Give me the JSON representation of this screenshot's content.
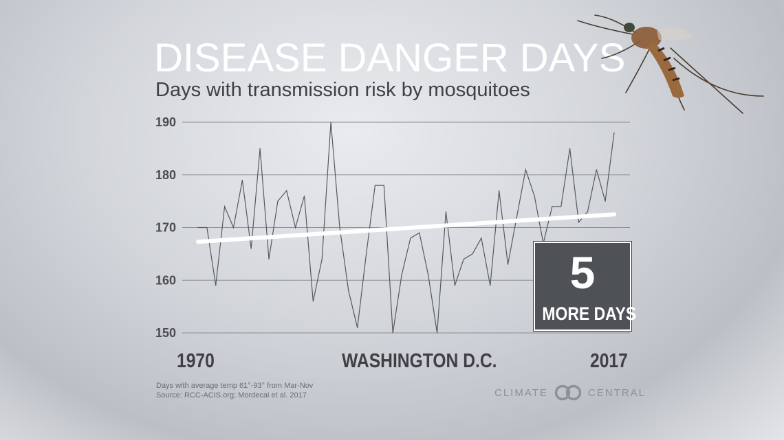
{
  "header": {
    "title": "DISEASE DANGER DAYS",
    "subtitle": "Days with transmission risk by mosquitoes"
  },
  "chart_data": {
    "type": "line",
    "title": "DISEASE DANGER DAYS",
    "subtitle": "Days with transmission risk by mosquitoes",
    "xlabel": "",
    "ylabel": "",
    "x_start_label": "1970",
    "x_end_label": "2017",
    "location_label": "WASHINGTON D.C.",
    "ylim": [
      150,
      190
    ],
    "yticks": [
      190,
      180,
      170,
      160,
      150
    ],
    "grid": true,
    "series": [
      {
        "x": [
          1970,
          1971,
          1972,
          1973,
          1974,
          1975,
          1976,
          1977,
          1978,
          1979,
          1980,
          1981,
          1982,
          1983,
          1984,
          1985,
          1986,
          1987,
          1988,
          1989,
          1990,
          1991,
          1992,
          1993,
          1994,
          1995,
          1996,
          1997,
          1998,
          1999,
          2000,
          2001,
          2002,
          2003,
          2004,
          2005,
          2006,
          2007,
          2008,
          2009,
          2010,
          2011,
          2012,
          2013,
          2014,
          2015,
          2016,
          2017
        ],
        "values": [
          170,
          170,
          159,
          174,
          170,
          179,
          166,
          185,
          164,
          175,
          177,
          170,
          176,
          156,
          164,
          190,
          170,
          158,
          151,
          165,
          178,
          178,
          150,
          161,
          168,
          169,
          161,
          150,
          173,
          159,
          164,
          165,
          168,
          159,
          177,
          163,
          172,
          181,
          176,
          167,
          174,
          174,
          185,
          171,
          173,
          181,
          175,
          188
        ]
      }
    ],
    "trend": {
      "x": [
        1970,
        2017
      ],
      "values": [
        167.3,
        172.5
      ]
    },
    "callout": {
      "number": "5",
      "text": "MORE DAYS"
    }
  },
  "footnotes": [
    "Days with average temp 61°-93° from Mar-Nov",
    "Source: RCC-ACIS.org; Mordecai et al. 2017"
  ],
  "brand": {
    "left": "CLIMATE",
    "right": "CENTRAL"
  },
  "colors": {
    "line": "#55585d",
    "trend": "#ffffff",
    "grid": "#8a8d92",
    "callout_bg": "#4e5156"
  }
}
